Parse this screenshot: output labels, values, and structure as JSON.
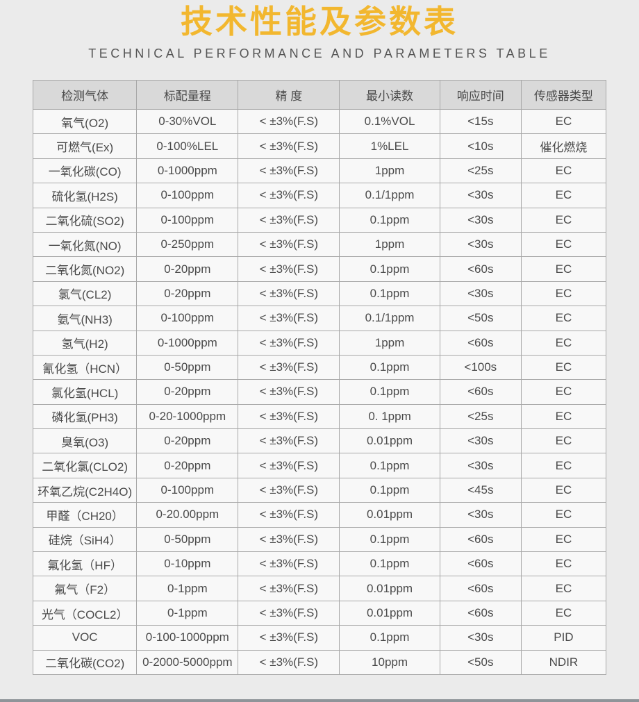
{
  "page": {
    "title": "技术性能及参数表",
    "subtitle": "TECHNICAL PERFORMANCE AND PARAMETERS TABLE"
  },
  "colors": {
    "accent": "#F2B72F",
    "page-bg": "#ebebeb",
    "cell-bg": "#f8f8f8",
    "header-bg": "#d9d9d9",
    "border": "#a8a8a8",
    "text": "#4a4a4a",
    "subtitle": "#555555",
    "bar": "#8f9499"
  },
  "table": {
    "headers": [
      "检测气体",
      "标配量程",
      "精 度",
      "最小读数",
      "响应时间",
      "传感器类型"
    ],
    "rows": [
      [
        "氧气(O2)",
        "0-30%VOL",
        "< ±3%(F.S)",
        "0.1%VOL",
        "<15s",
        "EC"
      ],
      [
        "可燃气(Ex)",
        "0-100%LEL",
        "< ±3%(F.S)",
        "1%LEL",
        "<10s",
        "催化燃烧"
      ],
      [
        "一氧化碳(CO)",
        "0-1000ppm",
        "< ±3%(F.S)",
        "1ppm",
        "<25s",
        "EC"
      ],
      [
        "硫化氢(H2S)",
        "0-100ppm",
        "< ±3%(F.S)",
        "0.1/1ppm",
        "<30s",
        "EC"
      ],
      [
        "二氧化硫(SO2)",
        "0-100ppm",
        "< ±3%(F.S)",
        "0.1ppm",
        "<30s",
        "EC"
      ],
      [
        "一氧化氮(NO)",
        "0-250ppm",
        "< ±3%(F.S)",
        "1ppm",
        "<30s",
        "EC"
      ],
      [
        "二氧化氮(NO2)",
        "0-20ppm",
        "< ±3%(F.S)",
        "0.1ppm",
        "<60s",
        "EC"
      ],
      [
        "氯气(CL2)",
        "0-20ppm",
        "< ±3%(F.S)",
        "0.1ppm",
        "<30s",
        "EC"
      ],
      [
        "氨气(NH3)",
        "0-100ppm",
        "< ±3%(F.S)",
        "0.1/1ppm",
        "<50s",
        "EC"
      ],
      [
        "氢气(H2)",
        "0-1000ppm",
        "< ±3%(F.S)",
        "1ppm",
        "<60s",
        "EC"
      ],
      [
        "氰化氢（HCN）",
        "0-50ppm",
        "< ±3%(F.S)",
        "0.1ppm",
        "<100s",
        "EC"
      ],
      [
        "氯化氢(HCL)",
        "0-20ppm",
        "< ±3%(F.S)",
        "0.1ppm",
        "<60s",
        "EC"
      ],
      [
        "磷化氢(PH3)",
        "0-20-1000ppm",
        "< ±3%(F.S)",
        "0. 1ppm",
        "<25s",
        "EC"
      ],
      [
        "臭氧(O3)",
        "0-20ppm",
        "< ±3%(F.S)",
        "0.01ppm",
        "<30s",
        "EC"
      ],
      [
        "二氧化氯(CLO2)",
        "0-20ppm",
        "< ±3%(F.S)",
        "0.1ppm",
        "<30s",
        "EC"
      ],
      [
        "环氧乙烷(C2H4O)",
        "0-100ppm",
        "< ±3%(F.S)",
        "0.1ppm",
        "<45s",
        "EC"
      ],
      [
        "甲醛（CH20）",
        "0-20.00ppm",
        "< ±3%(F.S)",
        "0.01ppm",
        "<30s",
        "EC"
      ],
      [
        "硅烷（SiH4）",
        "0-50ppm",
        "< ±3%(F.S)",
        "0.1ppm",
        "<60s",
        "EC"
      ],
      [
        "氟化氢（HF）",
        "0-10ppm",
        "< ±3%(F.S)",
        "0.1ppm",
        "<60s",
        "EC"
      ],
      [
        "氟气（F2）",
        "0-1ppm",
        "< ±3%(F.S)",
        "0.01ppm",
        "<60s",
        "EC"
      ],
      [
        "光气（COCL2）",
        "0-1ppm",
        "< ±3%(F.S)",
        "0.01ppm",
        "<60s",
        "EC"
      ],
      [
        "VOC",
        "0-100-1000ppm",
        "< ±3%(F.S)",
        "0.1ppm",
        "<30s",
        "PID"
      ],
      [
        "二氧化碳(CO2)",
        "0-2000-5000ppm",
        "< ±3%(F.S)",
        "10ppm",
        "<50s",
        "NDIR"
      ]
    ]
  }
}
